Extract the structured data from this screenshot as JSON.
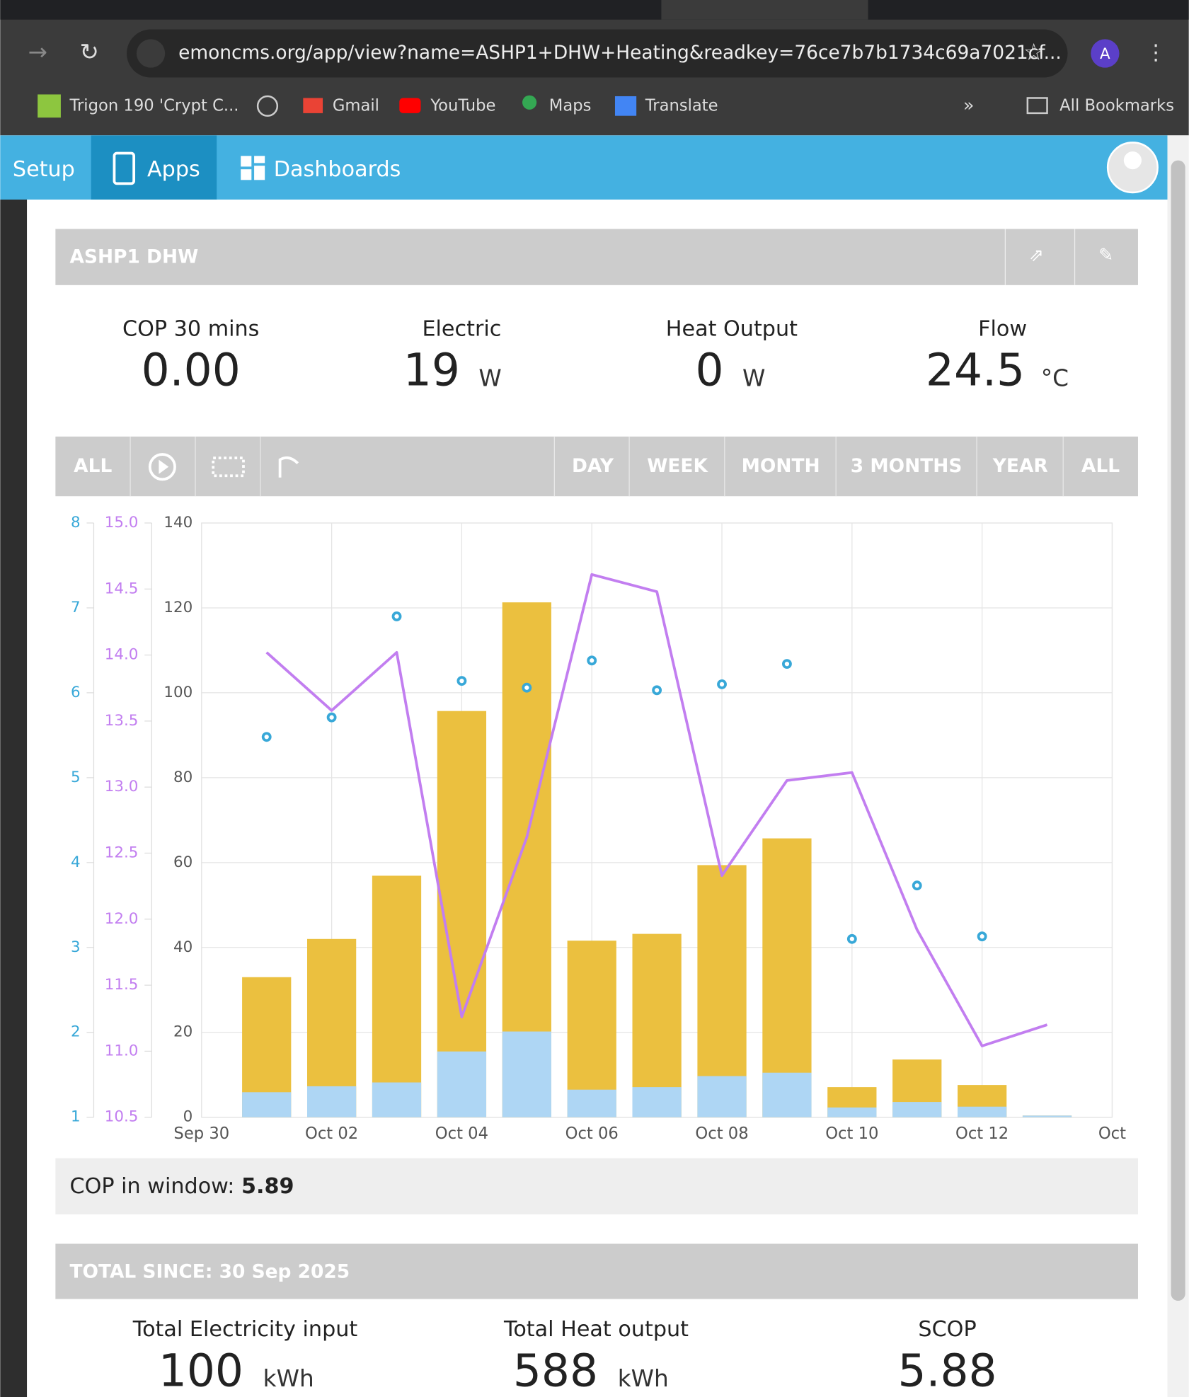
{
  "browser": {
    "url": "emoncms.org/app/view?name=ASHP1+DHW+Heating&readkey=76ce7b7b1734c69a7021cf...",
    "profile": "A",
    "bookmarks": [
      "Trigon 190 'Crypt C...",
      "Gmail",
      "YouTube",
      "Maps",
      "Translate"
    ],
    "all_bookmarks": "All Bookmarks"
  },
  "nav": {
    "items": [
      "Setup",
      "Apps",
      "Dashboards"
    ]
  },
  "panel": {
    "title": "ASHP1 DHW",
    "stats": [
      {
        "label": "COP 30 mins",
        "value": "0.00"
      },
      {
        "label": "Electric",
        "value": 19,
        "unit": "W"
      },
      {
        "label": "Heat Output",
        "value": 0,
        "unit": "W"
      },
      {
        "label": "Flow",
        "value": 24.5,
        "unit": "°C"
      }
    ]
  },
  "toolbar": {
    "left": [
      "ALL"
    ],
    "right": [
      "DAY",
      "WEEK",
      "MONTH",
      "3 MONTHS",
      "YEAR",
      "ALL"
    ]
  },
  "chart_data": {
    "type": "bar",
    "x": [
      "Oct 01",
      "Oct 02",
      "Oct 03",
      "Oct 04",
      "Oct 05",
      "Oct 06",
      "Oct 07",
      "Oct 08",
      "Oct 09",
      "Oct 10",
      "Oct 11",
      "Oct 12",
      "Oct 13"
    ],
    "xlim": [
      "Sep 30",
      "Oct 14"
    ],
    "xticks": [
      "Sep 30",
      "Oct 02",
      "Oct 04",
      "Oct 06",
      "Oct 08",
      "Oct 10",
      "Oct 12",
      {
        "value": "Oct 14",
        "label": "Oct"
      }
    ],
    "ylim": [
      0,
      140
    ],
    "yticks": [
      0,
      20,
      40,
      60,
      80,
      100,
      120,
      140
    ],
    "y2lim": [
      1,
      8
    ],
    "y2ticks": [
      1,
      2,
      3,
      4,
      5,
      6,
      7,
      8
    ],
    "y3lim": [
      10.5,
      15.0
    ],
    "y3ticks": [
      10.5,
      {
        "value": 11.0,
        "label": "11.0"
      },
      11.5,
      {
        "value": 12.0,
        "label": "12.0"
      },
      12.5,
      {
        "value": 13.0,
        "label": "13.0"
      },
      13.5,
      {
        "value": 14.0,
        "label": "14.0"
      },
      14.5,
      {
        "value": 15.0,
        "label": "15.0"
      }
    ],
    "grid": true,
    "series": [
      {
        "type": "bar",
        "color": "#ebc03f",
        "values": [
          33.0,
          42.0,
          56.9,
          95.7,
          121.3,
          41.6,
          43.2,
          59.4,
          65.7,
          7.1,
          13.6,
          7.6,
          0.4
        ]
      },
      {
        "type": "bar",
        "color": "#aed6f4",
        "values": [
          5.9,
          7.3,
          8.2,
          15.5,
          20.2,
          6.5,
          7.1,
          9.7,
          10.5,
          2.3,
          3.6,
          2.5,
          0.4
        ]
      },
      {
        "type": "scatter",
        "color": "#38a8d8",
        "axis": "y2",
        "values": [
          5.48,
          5.71,
          6.9,
          6.14,
          6.06,
          6.38,
          6.03,
          6.1,
          6.34,
          3.1,
          3.73,
          3.13,
          null
        ]
      },
      {
        "type": "line",
        "color": "#c27ef0",
        "axis": "y3",
        "values": [
          14.02,
          13.58,
          14.02,
          11.26,
          12.62,
          14.61,
          14.48,
          12.33,
          13.05,
          13.11,
          11.92,
          11.04,
          11.2
        ]
      }
    ]
  },
  "cop_window": {
    "label": "COP in window:",
    "value": "5.89"
  },
  "totals": {
    "title": "TOTAL SINCE: 30 Sep 2025",
    "items": [
      {
        "label": "Total Electricity input",
        "value": 100,
        "unit": "kWh"
      },
      {
        "label": "Total Heat output",
        "value": 588,
        "unit": "kWh"
      },
      {
        "label": "SCOP",
        "value": "5.88"
      }
    ]
  }
}
